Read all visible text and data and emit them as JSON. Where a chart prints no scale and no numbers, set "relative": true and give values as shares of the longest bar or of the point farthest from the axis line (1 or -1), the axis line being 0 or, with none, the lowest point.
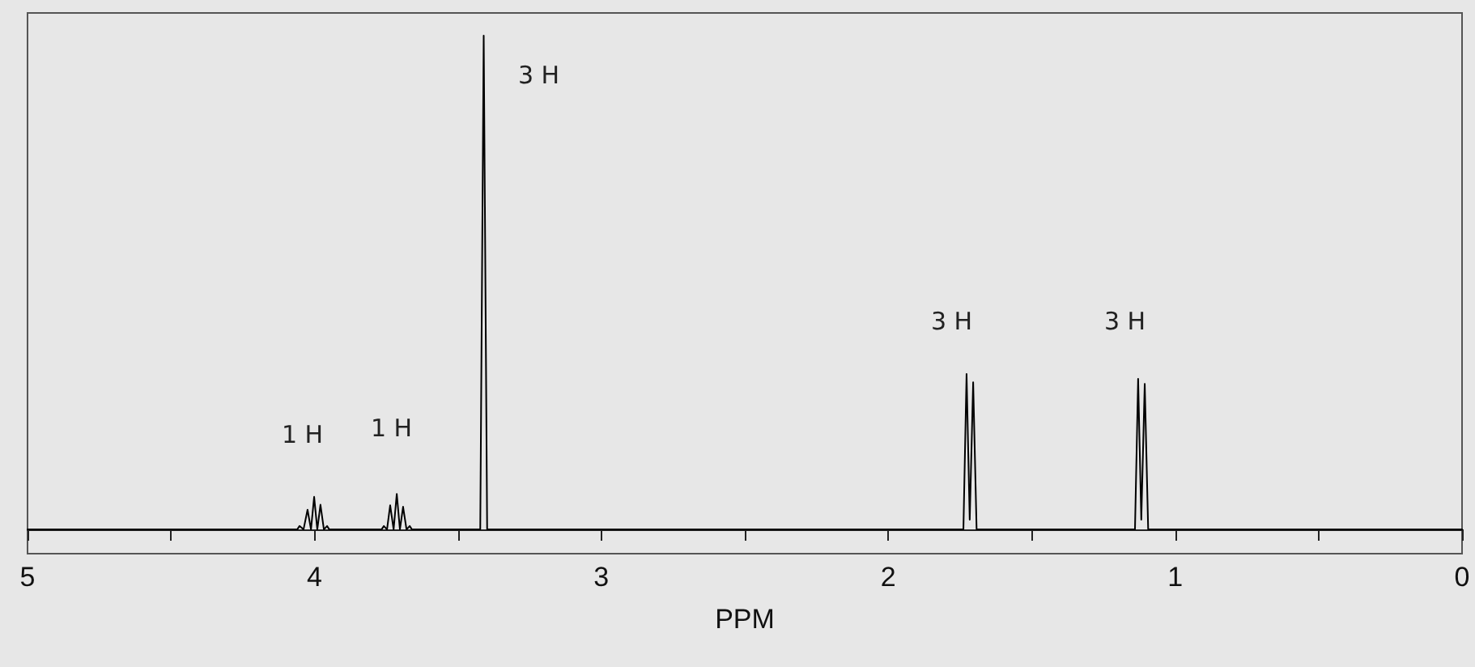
{
  "chart_data": {
    "type": "line",
    "relative": true,
    "xlabel": "PPM",
    "xlim": [
      5,
      0
    ],
    "xticks": [
      5,
      {
        "value": 4.5,
        "label": null
      },
      4,
      {
        "value": 3.5,
        "label": null
      },
      3,
      {
        "value": 2.5,
        "label": null
      },
      2,
      {
        "value": 1.5,
        "label": null
      },
      1,
      {
        "value": 0.5,
        "label": null
      },
      0
    ],
    "grid": false,
    "marker": "none",
    "line_style": "solid",
    "tick_labels": "x",
    "series": [
      {
        "color": "#000000",
        "x": [
          5,
          4.06,
          4.052,
          4.038,
          4.024,
          4.012,
          4.001,
          3.99,
          3.979,
          3.967,
          3.956,
          3.948,
          3.766,
          3.758,
          3.747,
          3.736,
          3.724,
          3.713,
          3.702,
          3.691,
          3.679,
          3.668,
          3.66,
          3.422,
          3.41,
          3.398,
          1.738,
          1.727,
          1.716,
          1.704,
          1.692,
          1.14,
          1.129,
          1.118,
          1.106,
          1.094,
          0
        ],
        "values": [
          0,
          0,
          0.007,
          0,
          0.04,
          0,
          0.066,
          0,
          0.05,
          0,
          0.007,
          0,
          0,
          0.007,
          0,
          0.049,
          0,
          0.072,
          0,
          0.046,
          0,
          0.007,
          0,
          0,
          1,
          0,
          0,
          0.315,
          0.02,
          0.298,
          0,
          0,
          0.305,
          0.02,
          0.295,
          0,
          0
        ]
      }
    ],
    "annotations": [
      "1 H",
      "1 H",
      "3 H",
      "3 H",
      "3 H"
    ]
  }
}
